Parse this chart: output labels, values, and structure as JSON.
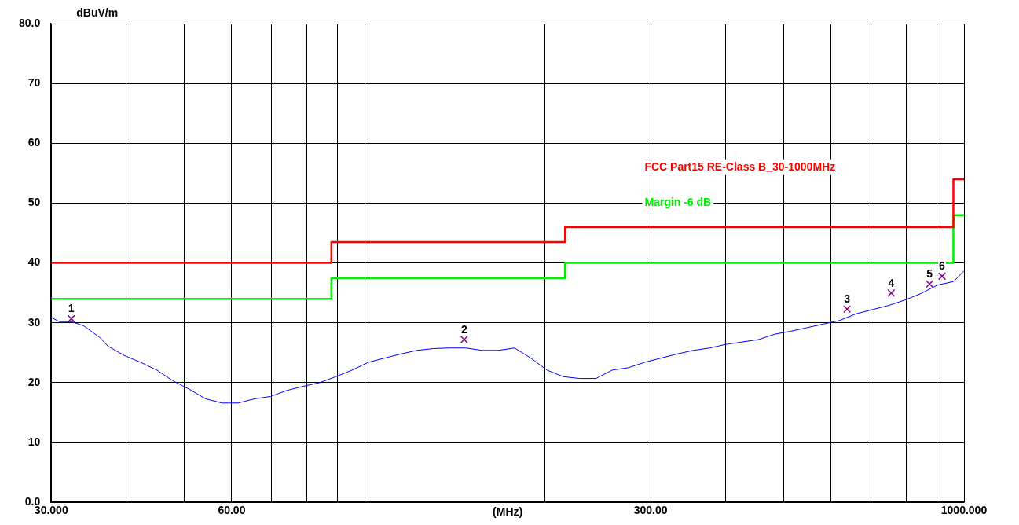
{
  "chart_data": {
    "type": "line",
    "xlabel": "(MHz)",
    "ylabel": "dBuV/m",
    "log": "x",
    "grid": true,
    "legend": "top right",
    "xlim": [
      30,
      1000
    ],
    "xticks": [
      {
        "value": 30,
        "label": "30.000"
      },
      {
        "value": 40,
        "label": null
      },
      {
        "value": 50,
        "label": null
      },
      {
        "value": 60,
        "label": "60.00"
      },
      {
        "value": 70,
        "label": null
      },
      {
        "value": 80,
        "label": null
      },
      {
        "value": 90,
        "label": null
      },
      {
        "value": 100,
        "label": null
      },
      {
        "value": 200,
        "label": null
      },
      {
        "value": 300,
        "label": "300.00"
      },
      {
        "value": 400,
        "label": null
      },
      {
        "value": 500,
        "label": null
      },
      {
        "value": 600,
        "label": null
      },
      {
        "value": 700,
        "label": null
      },
      {
        "value": 800,
        "label": null
      },
      {
        "value": 900,
        "label": null
      },
      {
        "value": 1000,
        "label": "1000.000"
      }
    ],
    "ylim": [
      0,
      80
    ],
    "yticks": [
      {
        "value": 0,
        "label": "0.0"
      },
      10,
      20,
      30,
      40,
      50,
      60,
      70,
      {
        "value": 80,
        "label": "80.0"
      }
    ],
    "series": [
      {
        "type": "step",
        "name": "FCC Part15 RE-Class B_30-1000MHz",
        "color": "#ff0000",
        "x": [
          30,
          88,
          216,
          960,
          1000
        ],
        "values": [
          40,
          43.5,
          46,
          54,
          54
        ]
      },
      {
        "type": "step",
        "name": "Margin -6 dB",
        "color": "#00ee00",
        "x": [
          30,
          88,
          216,
          960,
          1000
        ],
        "values": [
          34,
          37.5,
          40,
          48,
          48
        ]
      },
      {
        "type": "line",
        "color": "#0000ff",
        "marker": "none",
        "x": [
          30,
          30.95,
          32.4,
          34.0,
          36.2,
          37.3,
          39.8,
          42.3,
          45.0,
          47.9,
          51.0,
          54.3,
          57.8,
          61.5,
          65.5,
          69.7,
          74.2,
          79.0,
          84.1,
          89.5,
          95.3,
          101.4,
          107.9,
          114.9,
          122.3,
          130.2,
          138.6,
          147.5,
          157.0,
          167.1,
          177.9,
          189.4,
          201.5,
          214.6,
          228.4,
          243.1,
          258.8,
          275.4,
          293.2,
          312.0,
          332.2,
          353.6,
          376.3,
          400.6,
          426.4,
          453.8,
          483.0,
          514.2,
          547.4,
          582.7,
          620.3,
          660.2,
          702.8,
          748.1,
          796.4,
          847.8,
          902.4,
          960.6,
          1000
        ],
        "values": [
          30.9,
          30.2,
          30.2,
          29.5,
          27.5,
          26.1,
          24.5,
          23.4,
          22.1,
          20.3,
          18.9,
          17.3,
          16.6,
          16.6,
          17.3,
          17.7,
          18.7,
          19.4,
          20.0,
          21.0,
          22.1,
          23.4,
          24.1,
          24.8,
          25.4,
          25.7,
          25.8,
          25.8,
          25.4,
          25.4,
          25.8,
          24.1,
          22.1,
          21.0,
          20.7,
          20.7,
          22.1,
          22.5,
          23.4,
          24.1,
          24.8,
          25.4,
          25.8,
          26.4,
          26.8,
          27.2,
          28.1,
          28.6,
          29.2,
          29.8,
          30.4,
          31.5,
          32.2,
          32.9,
          33.8,
          34.9,
          36.3,
          36.9,
          38.7
        ]
      },
      {
        "type": "scatter",
        "color": "#800080",
        "marker": "cross",
        "x": [
          32.4,
          146.6,
          638,
          756,
          876,
          919
        ],
        "values": [
          30.7,
          27.2,
          32.3,
          35.0,
          36.5,
          37.8
        ]
      }
    ],
    "annotations": [
      {
        "text": "1",
        "x": 32.4,
        "y": 30.7
      },
      {
        "text": "2",
        "x": 146.6,
        "y": 27.2
      },
      {
        "text": "3",
        "x": 638,
        "y": 32.3
      },
      {
        "text": "4",
        "x": 756,
        "y": 35.0
      },
      {
        "text": "5",
        "x": 876,
        "y": 36.5
      },
      {
        "text": "6",
        "x": 919,
        "y": 37.8
      }
    ]
  }
}
